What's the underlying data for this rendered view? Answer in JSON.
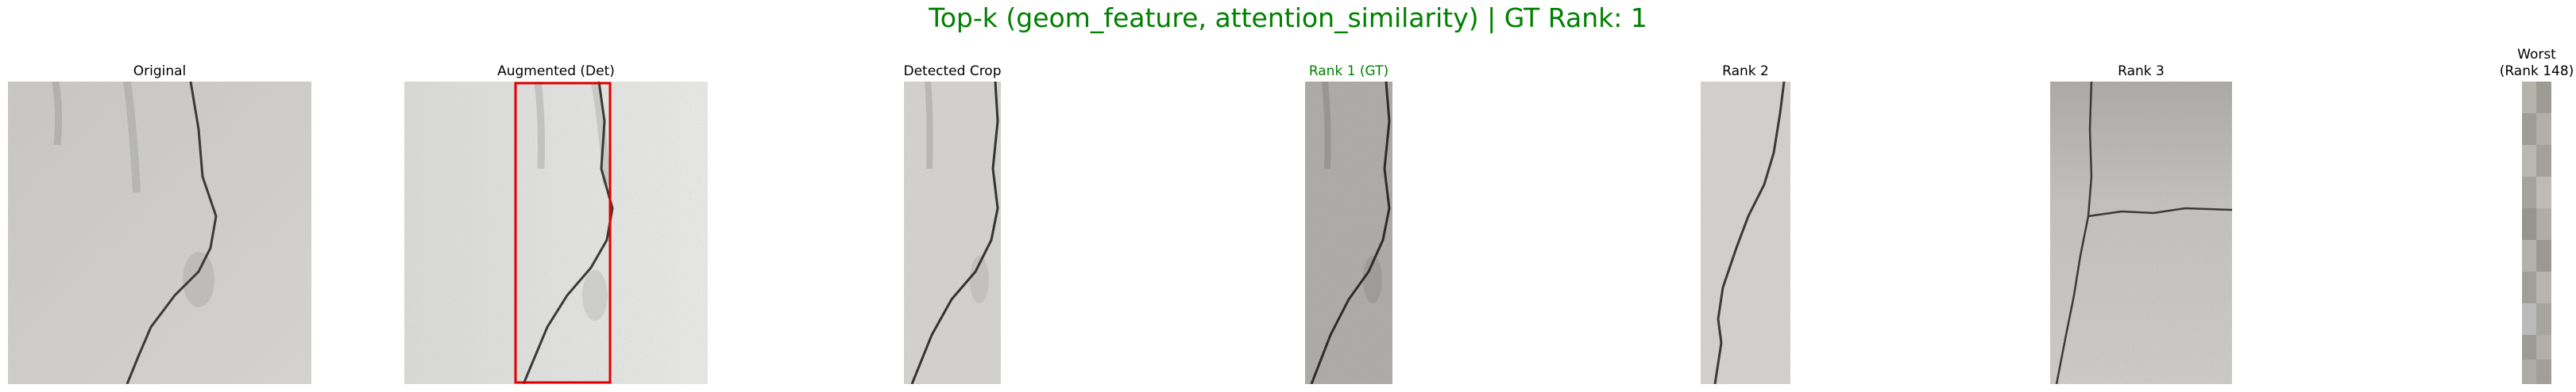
{
  "figure": {
    "title": "Top-k (geom_feature, attention_similarity) | GT Rank: 1",
    "title_color": "#008000"
  },
  "panels": [
    {
      "id": "original",
      "label": "Original"
    },
    {
      "id": "augmented",
      "label": "Augmented (Det)",
      "detection_box_color": "#e00000"
    },
    {
      "id": "crop",
      "label": "Detected Crop"
    },
    {
      "id": "rank1",
      "label": "Rank 1 (GT)",
      "label_color": "#008000"
    },
    {
      "id": "rank2",
      "label": "Rank 2"
    },
    {
      "id": "rank3",
      "label": "Rank 3"
    },
    {
      "id": "worst",
      "label": "Worst\n(Rank 148)"
    }
  ]
}
